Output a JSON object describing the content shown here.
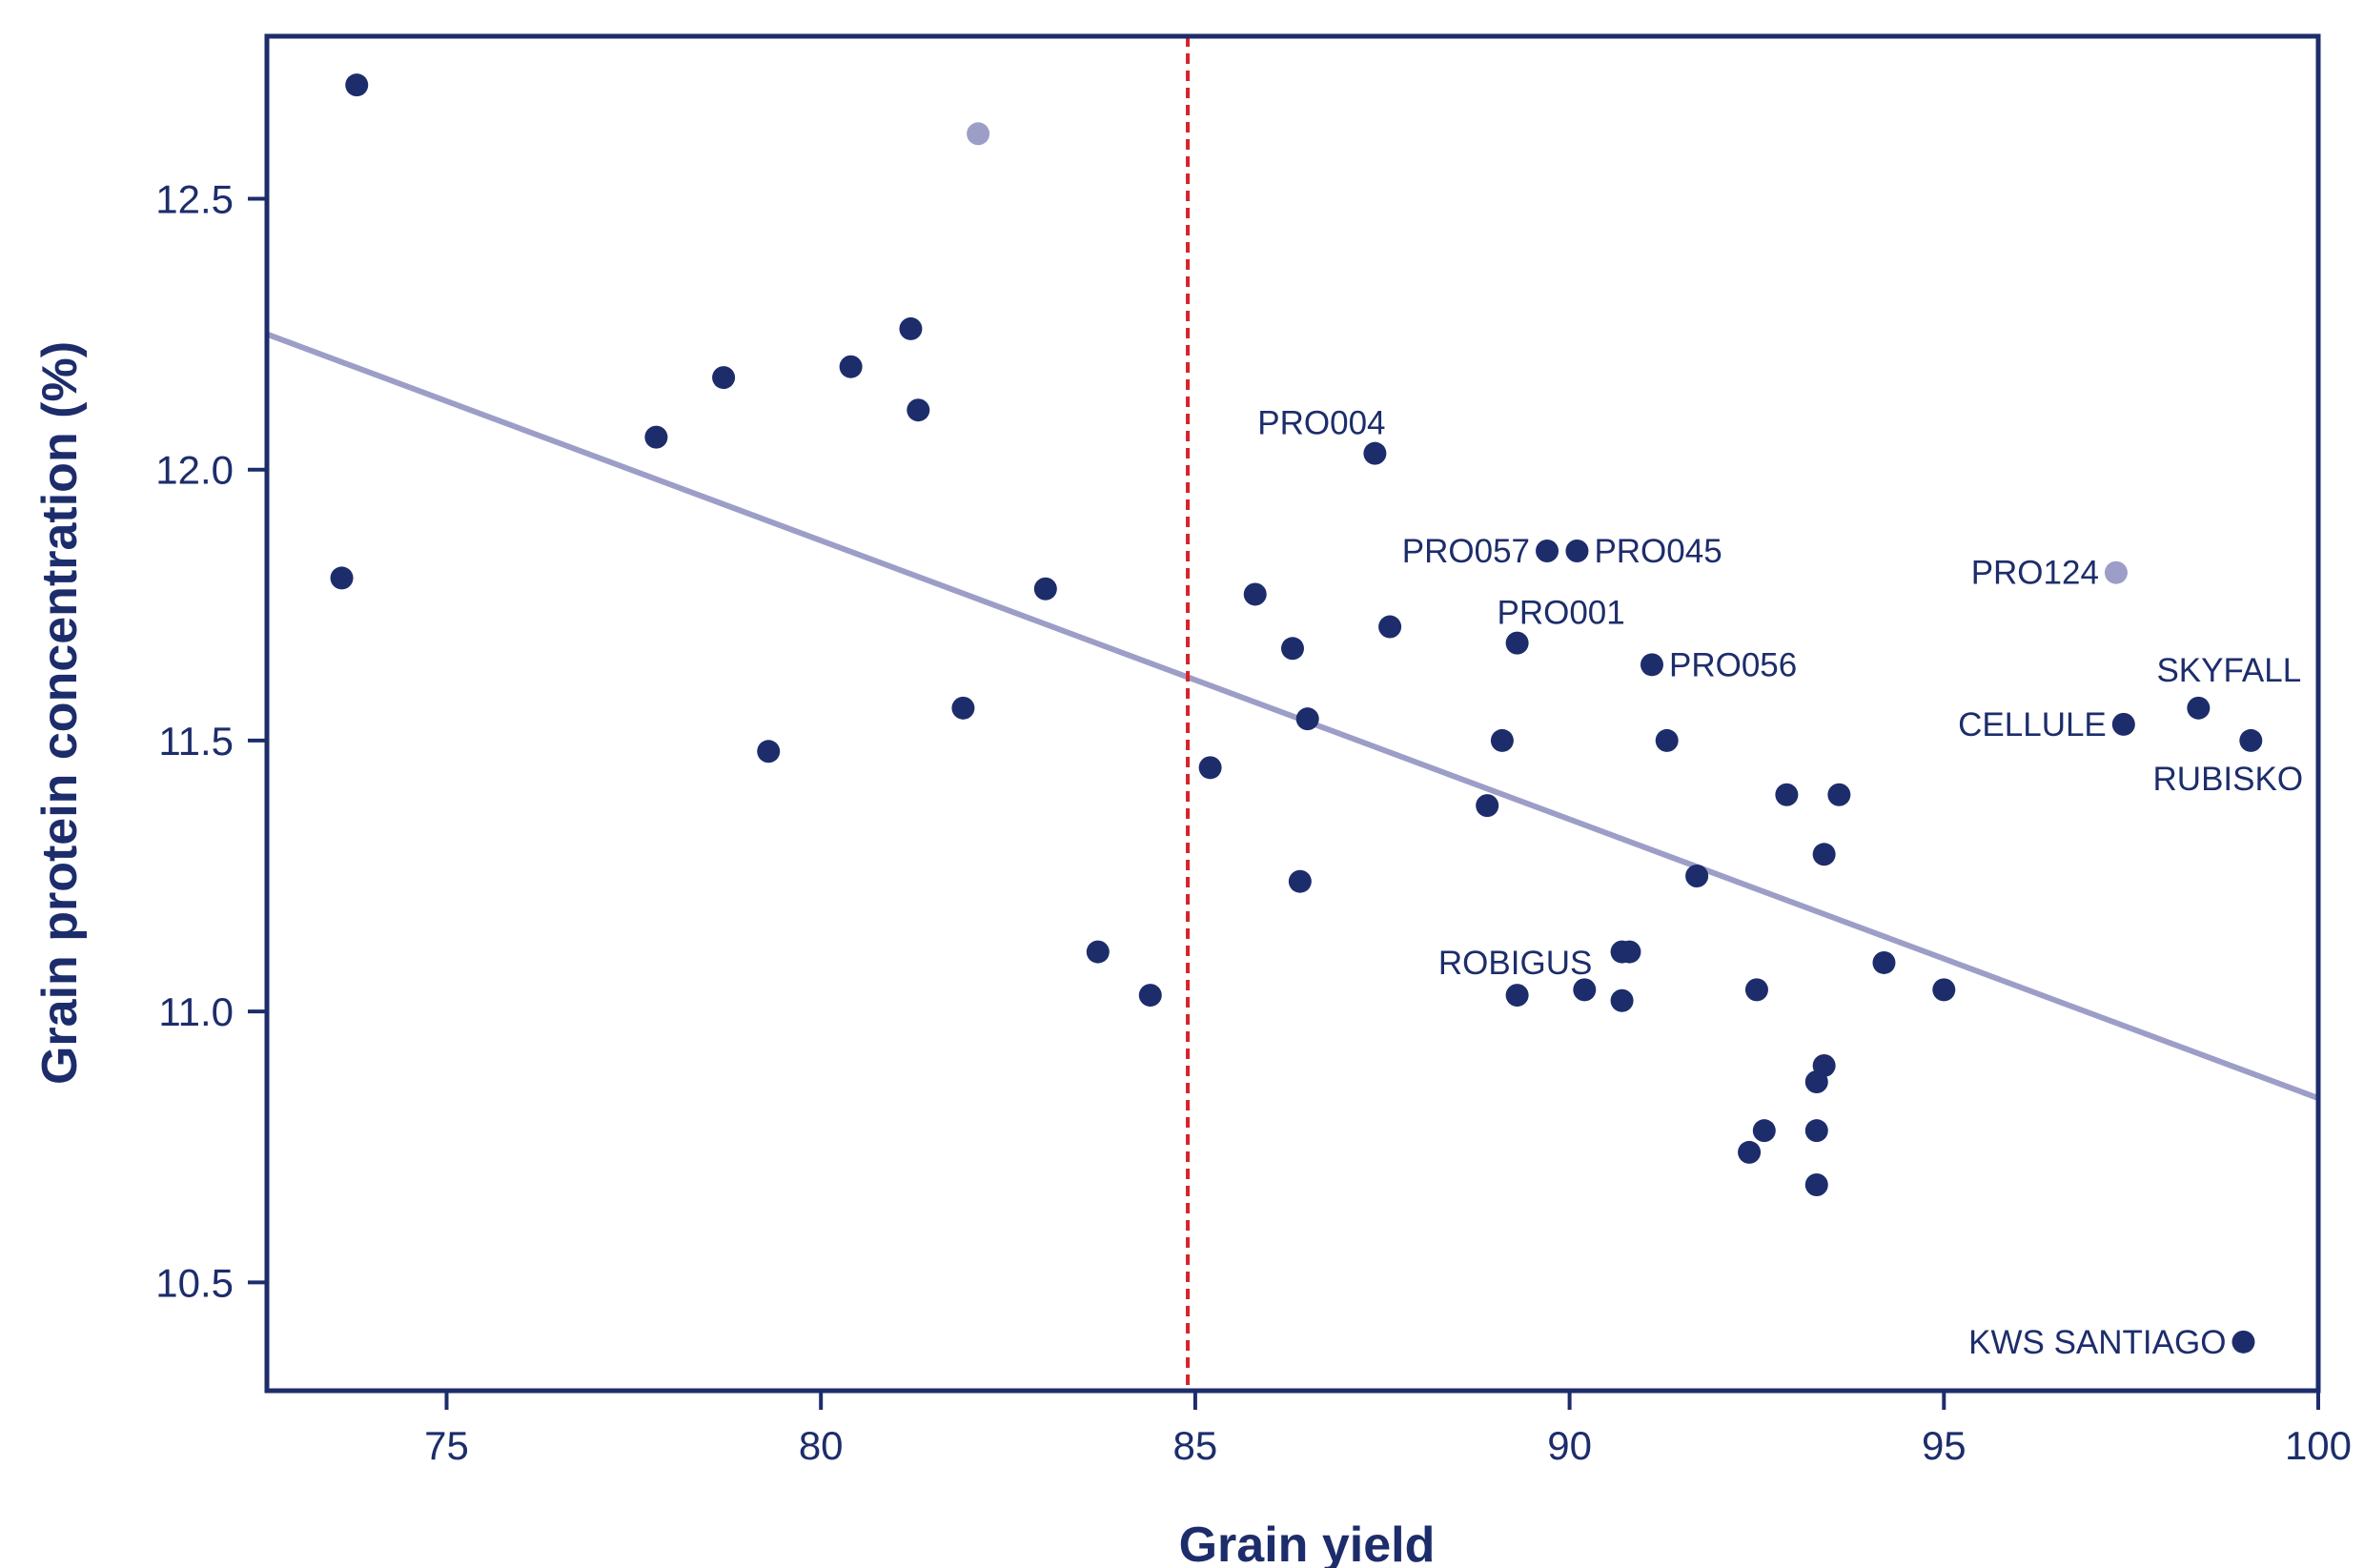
{
  "chart_data": {
    "type": "scatter",
    "title": "",
    "xlabel": "Grain yield",
    "ylabel": "Grain protein concentration (%)",
    "xlim": [
      72.6,
      100
    ],
    "ylim": [
      10.3,
      12.8
    ],
    "x_ticks": [
      75,
      80,
      85,
      90,
      95,
      100
    ],
    "x_tick_labels": [
      "75",
      "80",
      "85",
      "90",
      "95",
      "100"
    ],
    "y_ticks": [
      10.5,
      11.0,
      11.5,
      12.0,
      12.5
    ],
    "y_tick_labels": [
      "10.5",
      "11.0",
      "11.5",
      "12.0",
      "12.5"
    ],
    "grid": false,
    "colors": {
      "axis": "#1d2d6b",
      "point": "#1d2d6b",
      "highlight_point": "#9c9ec8",
      "trend_line": "#9c9ec8",
      "threshold_line": "#d8232a"
    },
    "threshold_line": {
      "x": 84.9,
      "style": "dashed"
    },
    "trend_line": {
      "x": [
        72.6,
        100
      ],
      "y": [
        12.25,
        10.84
      ]
    },
    "points": [
      {
        "x": 73.8,
        "y": 12.71,
        "label": "",
        "highlight": false
      },
      {
        "x": 73.6,
        "y": 11.8,
        "label": "",
        "highlight": false
      },
      {
        "x": 82.1,
        "y": 12.62,
        "label": "",
        "highlight": true
      },
      {
        "x": 77.8,
        "y": 12.06,
        "label": "",
        "highlight": false
      },
      {
        "x": 78.7,
        "y": 12.17,
        "label": "",
        "highlight": false
      },
      {
        "x": 79.3,
        "y": 11.48,
        "label": "",
        "highlight": false
      },
      {
        "x": 80.4,
        "y": 12.19,
        "label": "",
        "highlight": false
      },
      {
        "x": 81.2,
        "y": 12.26,
        "label": "",
        "highlight": false
      },
      {
        "x": 81.3,
        "y": 12.11,
        "label": "",
        "highlight": false
      },
      {
        "x": 81.9,
        "y": 11.56,
        "label": "",
        "highlight": false
      },
      {
        "x": 83.0,
        "y": 11.78,
        "label": "",
        "highlight": false
      },
      {
        "x": 83.7,
        "y": 11.11,
        "label": "",
        "highlight": false
      },
      {
        "x": 84.4,
        "y": 11.03,
        "label": "",
        "highlight": false
      },
      {
        "x": 85.2,
        "y": 11.45,
        "label": "",
        "highlight": false
      },
      {
        "x": 85.8,
        "y": 11.77,
        "label": "",
        "highlight": false
      },
      {
        "x": 86.3,
        "y": 11.67,
        "label": "",
        "highlight": false
      },
      {
        "x": 86.5,
        "y": 11.54,
        "label": "",
        "highlight": false
      },
      {
        "x": 86.4,
        "y": 11.24,
        "label": "",
        "highlight": false
      },
      {
        "x": 87.4,
        "y": 12.03,
        "label": "PRO004",
        "highlight": false,
        "label_pos": "above"
      },
      {
        "x": 87.6,
        "y": 11.71,
        "label": "",
        "highlight": false
      },
      {
        "x": 88.9,
        "y": 11.38,
        "label": "",
        "highlight": false
      },
      {
        "x": 89.1,
        "y": 11.5,
        "label": "",
        "highlight": false
      },
      {
        "x": 89.3,
        "y": 11.68,
        "label": "PRO001",
        "highlight": false,
        "label_pos": "above"
      },
      {
        "x": 89.3,
        "y": 11.03,
        "label": "ROBIGUS",
        "highlight": false,
        "label_pos": "above"
      },
      {
        "x": 89.7,
        "y": 11.85,
        "label": "PRO057",
        "highlight": false,
        "label_pos": "left"
      },
      {
        "x": 90.1,
        "y": 11.85,
        "label": "PRO045",
        "highlight": false,
        "label_pos": "right"
      },
      {
        "x": 90.2,
        "y": 11.04,
        "label": "",
        "highlight": false
      },
      {
        "x": 90.7,
        "y": 11.11,
        "label": "",
        "highlight": false
      },
      {
        "x": 90.8,
        "y": 11.11,
        "label": "",
        "highlight": false
      },
      {
        "x": 90.7,
        "y": 11.02,
        "label": "",
        "highlight": false
      },
      {
        "x": 91.1,
        "y": 11.64,
        "label": "PRO056",
        "highlight": false,
        "label_pos": "right"
      },
      {
        "x": 91.3,
        "y": 11.5,
        "label": "",
        "highlight": false
      },
      {
        "x": 91.7,
        "y": 11.25,
        "label": "",
        "highlight": false
      },
      {
        "x": 92.4,
        "y": 10.74,
        "label": "",
        "highlight": false
      },
      {
        "x": 92.5,
        "y": 11.04,
        "label": "",
        "highlight": false
      },
      {
        "x": 92.6,
        "y": 10.78,
        "label": "",
        "highlight": false
      },
      {
        "x": 92.9,
        "y": 11.4,
        "label": "",
        "highlight": false
      },
      {
        "x": 93.3,
        "y": 10.78,
        "label": "",
        "highlight": false
      },
      {
        "x": 93.3,
        "y": 10.68,
        "label": "",
        "highlight": false
      },
      {
        "x": 93.3,
        "y": 10.87,
        "label": "",
        "highlight": false
      },
      {
        "x": 93.4,
        "y": 10.9,
        "label": "",
        "highlight": false
      },
      {
        "x": 93.4,
        "y": 11.29,
        "label": "",
        "highlight": false
      },
      {
        "x": 93.6,
        "y": 11.4,
        "label": "",
        "highlight": false
      },
      {
        "x": 94.2,
        "y": 11.09,
        "label": "",
        "highlight": false
      },
      {
        "x": 95.0,
        "y": 11.04,
        "label": "",
        "highlight": false
      },
      {
        "x": 97.3,
        "y": 11.81,
        "label": "PRO124",
        "highlight": true,
        "label_pos": "left"
      },
      {
        "x": 97.4,
        "y": 11.53,
        "label": "CELLULE",
        "highlight": false,
        "label_pos": "left"
      },
      {
        "x": 98.4,
        "y": 11.56,
        "label": "SKYFALL",
        "highlight": false,
        "label_pos": "above"
      },
      {
        "x": 99.1,
        "y": 11.5,
        "label": "RUBISKO",
        "highlight": false,
        "label_pos": "below"
      },
      {
        "x": 99.0,
        "y": 10.39,
        "label": "KWS SANTIAGO",
        "highlight": false,
        "label_pos": "left"
      }
    ]
  }
}
